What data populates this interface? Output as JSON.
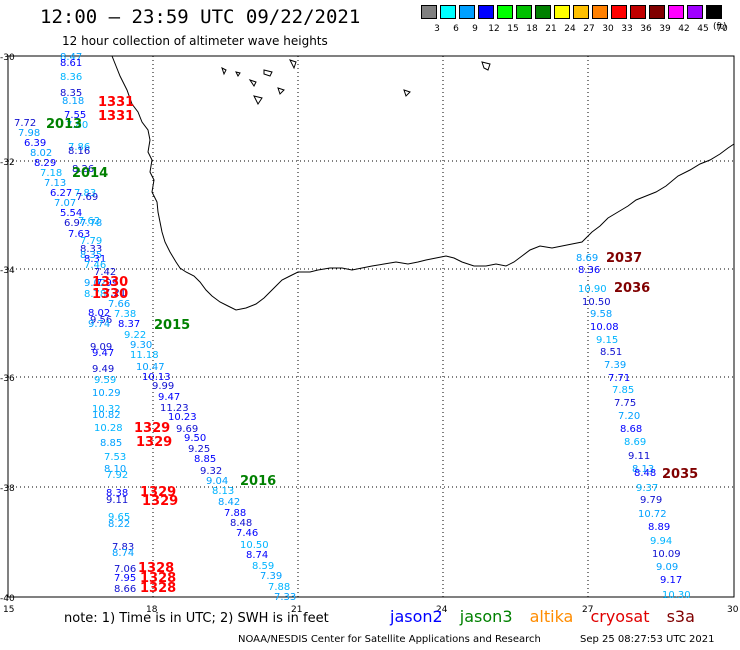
{
  "header": {
    "title": "12:00 – 23:59 UTC 09/22/2021",
    "subtitle": "12 hour collection of altimeter wave heights"
  },
  "colorbar": {
    "unit": "(ft)",
    "labels": [
      "3",
      "6",
      "9",
      "12",
      "15",
      "18",
      "21",
      "24",
      "27",
      "30",
      "33",
      "36",
      "39",
      "42",
      "45",
      "70"
    ],
    "colors": [
      "#808080",
      "#00ffff",
      "#00a0ff",
      "#0000ff",
      "#00ff00",
      "#00c000",
      "#008000",
      "#ffff00",
      "#ffc000",
      "#ff8000",
      "#ff0000",
      "#c00000",
      "#800000",
      "#ff00ff",
      "#a000ff",
      "#000000"
    ]
  },
  "map": {
    "lat_labels": [
      "-30",
      "-32",
      "-34",
      "-36",
      "-38",
      "-40"
    ],
    "lon_labels": [
      "15",
      "18",
      "21",
      "24",
      "27",
      "30"
    ],
    "cycle_labels": [
      {
        "text": "1331",
        "color": "#ff0000"
      },
      {
        "text": "1331",
        "color": "#ff0000"
      },
      {
        "text": "2013",
        "color": "#008000"
      },
      {
        "text": "2014",
        "color": "#008000"
      },
      {
        "text": "1330",
        "color": "#ff0000"
      },
      {
        "text": "1330",
        "color": "#ff0000"
      },
      {
        "text": "2015",
        "color": "#008000"
      },
      {
        "text": "1329",
        "color": "#ff0000"
      },
      {
        "text": "1329",
        "color": "#ff0000"
      },
      {
        "text": "2016",
        "color": "#008000"
      },
      {
        "text": "1329",
        "color": "#ff0000"
      },
      {
        "text": "1329",
        "color": "#ff0000"
      },
      {
        "text": "1328",
        "color": "#ff0000"
      },
      {
        "text": "1328",
        "color": "#ff0000"
      },
      {
        "text": "1328",
        "color": "#ff0000"
      },
      {
        "text": "2037",
        "color": "#800000"
      },
      {
        "text": "2036",
        "color": "#800000"
      },
      {
        "text": "2035",
        "color": "#800000"
      }
    ],
    "wave_values": {
      "west_track": [
        "8.47",
        "8.61",
        "8.36",
        "8.35",
        "8.18",
        "7.55",
        "7.80",
        "7.72",
        "7.98",
        "6.39",
        "7.86",
        "8.16",
        "8.02",
        "8.29",
        "7.18",
        "8.26",
        "7.13",
        "6.27",
        "7.83",
        "7.69",
        "7.07",
        "5.54",
        "7.62",
        "6.97",
        "7.78",
        "7.63",
        "7.79",
        "8.33",
        "8.35",
        "8.31",
        "7.46",
        "7.42",
        "9.02",
        "7.99",
        "8.78",
        "7.21",
        "7.66",
        "8.02",
        "7.38",
        "9.56",
        "9.74",
        "8.37",
        "9.22",
        "9.09",
        "9.30",
        "9.47",
        "11.18",
        "9.49",
        "10.47",
        "10.13",
        "9.59",
        "9.99",
        "10.29",
        "9.47",
        "10.32",
        "11.23",
        "10.82",
        "10.23",
        "10.28",
        "9.69",
        "8.85",
        "9.50",
        "7.53",
        "9.25",
        "8.10",
        "8.85",
        "7.92",
        "9.32",
        "9.04",
        "8.38",
        "8.13",
        "9.11",
        "8.42",
        "7.88",
        "9.65",
        "8.48",
        "8.22",
        "7.46",
        "10.50",
        "7.83",
        "8.74",
        "8.74",
        "8.59",
        "7.06",
        "7.39",
        "7.95",
        "7.88",
        "8.66",
        "7.33"
      ],
      "east_track": [
        "8.69",
        "8.36",
        "10.90",
        "10.50",
        "9.58",
        "10.08",
        "9.15",
        "8.51",
        "7.39",
        "7.71",
        "7.85",
        "7.75",
        "7.20",
        "8.68",
        "8.69",
        "9.11",
        "8.13",
        "8.48",
        "9.37",
        "9.79",
        "10.72",
        "8.89",
        "9.94",
        "10.09",
        "9.09",
        "9.17",
        "10.30"
      ]
    }
  },
  "footer": {
    "note": "note: 1) Time is in UTC; 2) SWH is in feet",
    "credit": "NOAA/NESDIS Center for Satellite Applications and Research",
    "date": "Sep 25 08:27:53 UTC 2021"
  },
  "satellites": [
    {
      "name": "jason2",
      "color": "#0000ff"
    },
    {
      "name": "jason3",
      "color": "#008000"
    },
    {
      "name": "altika",
      "color": "#ff8c00"
    },
    {
      "name": "cryosat",
      "color": "#e00000"
    },
    {
      "name": "s3a",
      "color": "#800000"
    }
  ]
}
